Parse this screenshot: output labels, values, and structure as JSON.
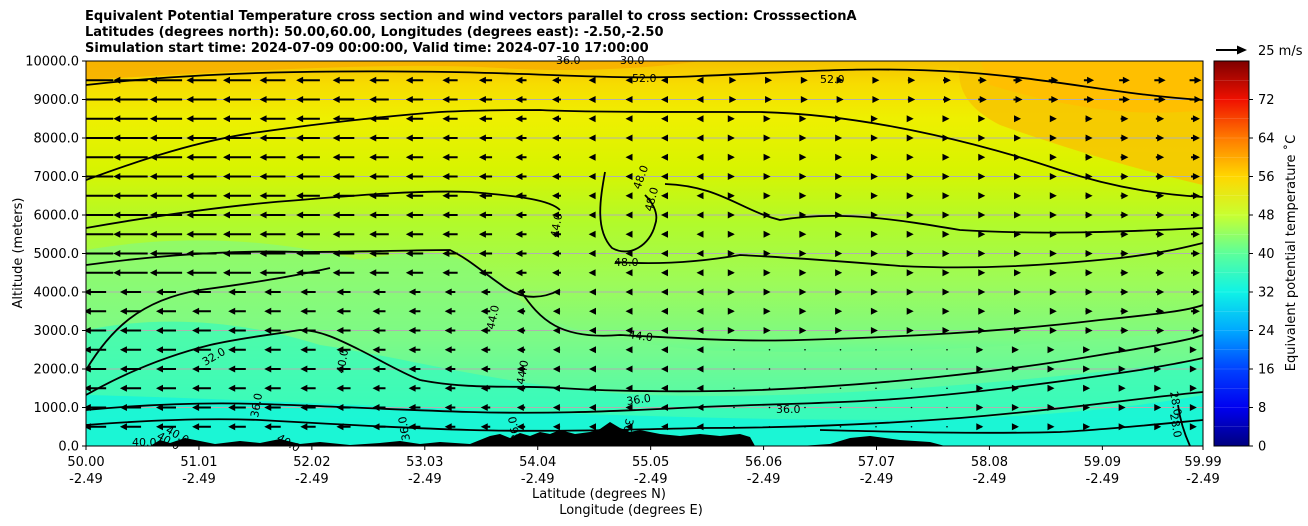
{
  "chart_data": {
    "type": "heatmap",
    "title_lines": [
      "Equivalent Potential Temperature cross section and wind vectors parallel to cross section: CrosssectionA",
      "Latitudes (degrees north): 50.00,60.00, Longitudes (degrees east): -2.50,-2.50",
      "Simulation start time: 2024-07-09 00:00:00, Valid time: 2024-07-10 17:00:00"
    ],
    "ylabel": "Altitude (meters)",
    "xlabel_lines": [
      "Latitude (degrees N)",
      "Longitude (degrees E)"
    ],
    "ylim": [
      0,
      10000
    ],
    "y_ticks": [
      "0.0",
      "1000.0",
      "2000.0",
      "3000.0",
      "4000.0",
      "5000.0",
      "6000.0",
      "7000.0",
      "8000.0",
      "9000.0",
      "10000.0"
    ],
    "x_ticks": [
      {
        "lat": "50.00",
        "lon": "-2.49"
      },
      {
        "lat": "51.01",
        "lon": "-2.49"
      },
      {
        "lat": "52.02",
        "lon": "-2.49"
      },
      {
        "lat": "53.03",
        "lon": "-2.49"
      },
      {
        "lat": "54.04",
        "lon": "-2.49"
      },
      {
        "lat": "55.05",
        "lon": "-2.49"
      },
      {
        "lat": "56.06",
        "lon": "-2.49"
      },
      {
        "lat": "57.07",
        "lon": "-2.49"
      },
      {
        "lat": "58.08",
        "lon": "-2.49"
      },
      {
        "lat": "59.09",
        "lon": "-2.49"
      },
      {
        "lat": "59.99",
        "lon": "-2.49"
      }
    ],
    "grid": "horizontal",
    "colorbar": {
      "label": "Equivalent potential temperature ˚C",
      "range": [
        0,
        80
      ],
      "ticks": [
        "0",
        "8",
        "16",
        "24",
        "32",
        "40",
        "48",
        "56",
        "64",
        "72"
      ]
    },
    "quiver_key": "25 m/s",
    "contour_labels": [
      "30.0",
      "36.0",
      "52.0",
      "52.0",
      "48.0",
      "48.0",
      "44.0",
      "48.0",
      "44.0",
      "44.0",
      "44.0",
      "32.0",
      "40.0",
      "40.0",
      "36.0",
      "36.0",
      "36.0",
      "28.0",
      "28.0",
      "40.0",
      "40.0",
      "40.0",
      "36.0",
      "36.0",
      "36.0"
    ]
  }
}
